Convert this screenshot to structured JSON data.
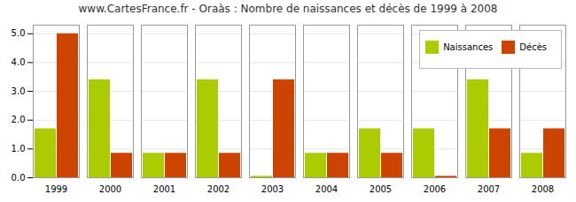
{
  "chart_data": {
    "type": "bar",
    "title": "www.CartesFrance.fr - Oraàs : Nombre de naissances et décès de 1999 à 2008",
    "categories": [
      "1999",
      "2000",
      "2001",
      "2002",
      "2003",
      "2004",
      "2005",
      "2006",
      "2007",
      "2008"
    ],
    "series": [
      {
        "name": "Naissances",
        "color": "#aacc00",
        "values": [
          1.7,
          3.4,
          0.85,
          3.4,
          0.05,
          0.85,
          1.7,
          1.7,
          3.4,
          0.85
        ]
      },
      {
        "name": "Décès",
        "color": "#cc4400",
        "values": [
          5.0,
          0.85,
          0.85,
          0.85,
          3.4,
          0.85,
          0.85,
          0.05,
          1.7,
          1.7
        ]
      }
    ],
    "ylim": [
      0,
      5.3
    ],
    "yticks": [
      0,
      1,
      2,
      3,
      4,
      5
    ],
    "grid": true,
    "legend": "upper right"
  }
}
